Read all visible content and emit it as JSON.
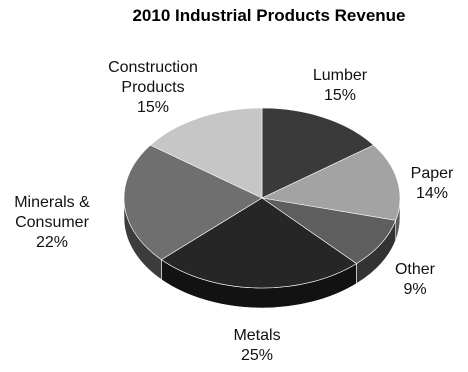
{
  "chart_data": {
    "type": "pie",
    "title": "2010 Industrial Products Revenue",
    "slices": [
      {
        "label_lines": [
          "Lumber"
        ],
        "pct_label": "15%",
        "value": 15,
        "color": "#3a3a3a",
        "side": "#1e1e1e"
      },
      {
        "label_lines": [
          "Paper"
        ],
        "pct_label": "14%",
        "value": 14,
        "color": "#a3a3a3",
        "side": "#5c5c5c"
      },
      {
        "label_lines": [
          "Other"
        ],
        "pct_label": "9%",
        "value": 9,
        "color": "#5e5e5e",
        "side": "#333333"
      },
      {
        "label_lines": [
          "Metals"
        ],
        "pct_label": "25%",
        "value": 25,
        "color": "#262626",
        "side": "#121212"
      },
      {
        "label_lines": [
          "Minerals &",
          "Consumer"
        ],
        "pct_label": "22%",
        "value": 22,
        "color": "#6f6f6f",
        "side": "#3c3c3c"
      },
      {
        "label_lines": [
          "Construction",
          "Products"
        ],
        "pct_label": "15%",
        "value": 15,
        "color": "#c6c6c6",
        "side": "#8a8a8a"
      }
    ],
    "legend": "none",
    "style": "3d-tilted"
  }
}
